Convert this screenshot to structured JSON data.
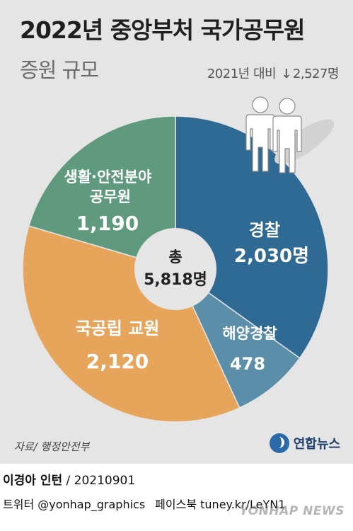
{
  "header": {
    "title": "2022년 중앙부처 국가공무원",
    "subtitle": "증원 규모",
    "compare_prefix": "2021년 대비",
    "compare_arrow": "↓",
    "compare_value": "2,527명"
  },
  "chart_data": {
    "type": "pie",
    "title": "2022년 중앙부처 국가공무원",
    "subtitle": "증원 규모",
    "unit": "명",
    "total_label": "총",
    "total_value": "5,818명",
    "total": 5818,
    "slices": [
      {
        "name": "경찰",
        "value": 2030,
        "value_label": "2,030명",
        "color": "#2e6a93"
      },
      {
        "name": "해양경찰",
        "value": 478,
        "value_label": "478",
        "color": "#5b8fa9"
      },
      {
        "name": "국공립 교원",
        "value": 2120,
        "value_label": "2,120",
        "color": "#e7a55b"
      },
      {
        "name": "생활·안전분야 공무원",
        "value": 1190,
        "value_label": "1,190",
        "color": "#5f9a7e"
      }
    ]
  },
  "footer": {
    "source": "자료/ 행정안전부",
    "agency": "연합뉴스",
    "credit_name": "이경아 인턴",
    "credit_date": "/ 20210901",
    "social_twitter": "트위터 @yonhap_graphics",
    "social_facebook": "페이스북 tuney.kr/LeYN1",
    "watermark": "YONHAP NEWS"
  },
  "colors": {
    "panel": "#e5e5e5",
    "label_text": "#ffffff",
    "center_circle": "#e5e5e5"
  },
  "icons": [
    "people-icon",
    "down-arrow-icon",
    "yonhap-logo-icon"
  ]
}
